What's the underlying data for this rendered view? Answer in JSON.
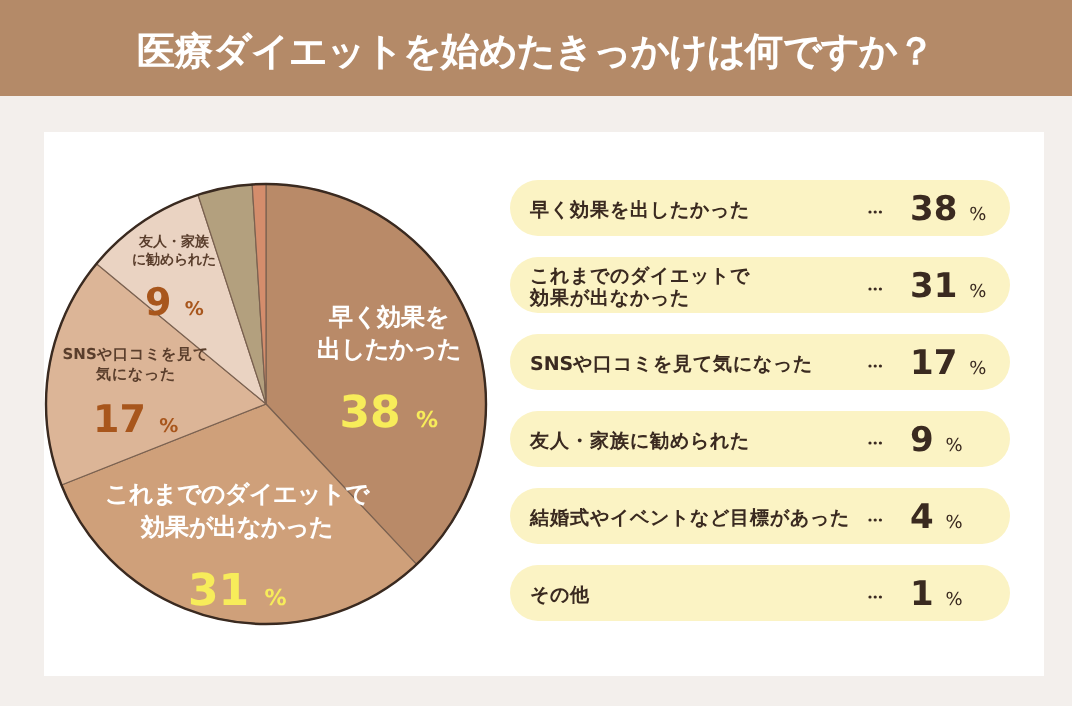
{
  "chart_data": [
    {
      "type": "pie",
      "title": "医療ダイエットを始めたきっかけは何ですか？",
      "categories": [
        "早く効果を出したかった",
        "これまでのダイエットで効果が出なかった",
        "SNSや口コミを見て気になった",
        "友人・家族に勧められた",
        null,
        null
      ],
      "values": [
        38,
        31,
        17,
        9,
        4,
        1
      ],
      "value_labels": [
        "38 %",
        "31 %",
        "17 %",
        "9 %",
        null,
        null
      ],
      "colors": [
        "#b98a68",
        "#cfa07a",
        "#dcb597",
        "#ead3c2",
        "#b3a07e",
        "#d48d6c"
      ]
    },
    {
      "type": "other",
      "categories": [
        "早く効果を出したかった",
        "これまでのダイエットで効果が出なかった",
        "SNSや口コミを見て気になった",
        "友人・家族に勧められた",
        "結婚式やイベントなど目標があった",
        "その他"
      ],
      "value_labels": [
        "38 %",
        "31 %",
        "17 %",
        "9 %",
        "4 %",
        "1 %"
      ]
    }
  ]
}
